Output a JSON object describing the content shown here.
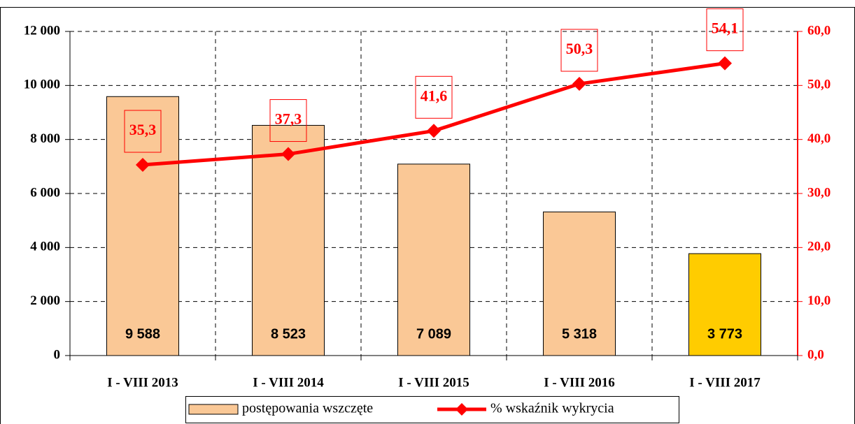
{
  "chart_data": {
    "type": "bar",
    "categories": [
      "I - VIII 2013",
      "I - VIII 2014",
      "I - VIII 2015",
      "I - VIII 2016",
      "I - VIII 2017"
    ],
    "series": [
      {
        "name": "postępowania wszczęte",
        "type": "bar",
        "colors": [
          "#fac896",
          "#fac896",
          "#fac896",
          "#fac896",
          "#ffcc00"
        ],
        "values": [
          9588,
          8523,
          7089,
          5318,
          3773
        ],
        "value_labels": [
          "9 588",
          "8 523",
          "7 089",
          "5 318",
          "3 773"
        ]
      },
      {
        "name": "% wskaźnik wykrycia",
        "type": "line",
        "color": "#ff0000",
        "axis": "y2",
        "values": [
          35.3,
          37.3,
          41.6,
          50.3,
          54.1
        ],
        "value_labels": [
          "35,3",
          "37,3",
          "41,6",
          "50,3",
          "54,1"
        ]
      }
    ],
    "ylim": [
      0,
      12000
    ],
    "yticks": [
      0,
      {
        "value": 2000,
        "label": "2 000"
      },
      {
        "value": 4000,
        "label": "4 000"
      },
      {
        "value": 6000,
        "label": "6 000"
      },
      {
        "value": 8000,
        "label": "8 000"
      },
      {
        "value": 10000,
        "label": "10 000"
      },
      {
        "value": 12000,
        "label": "12 000"
      }
    ],
    "y2lim": [
      0,
      60
    ],
    "y2ticks": [
      {
        "value": 0,
        "label": "0,0"
      },
      {
        "value": 10,
        "label": "10,0"
      },
      {
        "value": 20,
        "label": "20,0"
      },
      {
        "value": 30,
        "label": "30,0"
      },
      {
        "value": 40,
        "label": "40,0"
      },
      {
        "value": 50,
        "label": "50,0"
      },
      {
        "value": 60,
        "label": "60,0"
      }
    ],
    "grid": true,
    "legend": "bottom"
  }
}
